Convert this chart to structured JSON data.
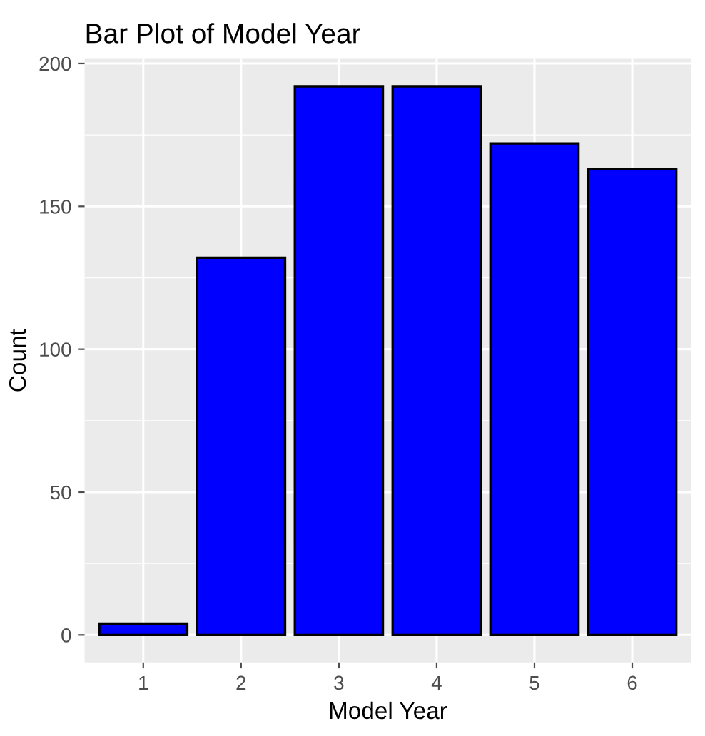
{
  "chart_data": {
    "type": "bar",
    "title": "Bar Plot of Model Year",
    "xlabel": "Model Year",
    "ylabel": "Count",
    "categories": [
      "1",
      "2",
      "3",
      "4",
      "5",
      "6"
    ],
    "values": [
      4,
      132,
      192,
      192,
      172,
      163
    ],
    "color": "#0000ff",
    "ylim": [
      -9.6,
      201.6
    ],
    "yticks": [
      0,
      50,
      100,
      150,
      200
    ],
    "grid": true
  }
}
